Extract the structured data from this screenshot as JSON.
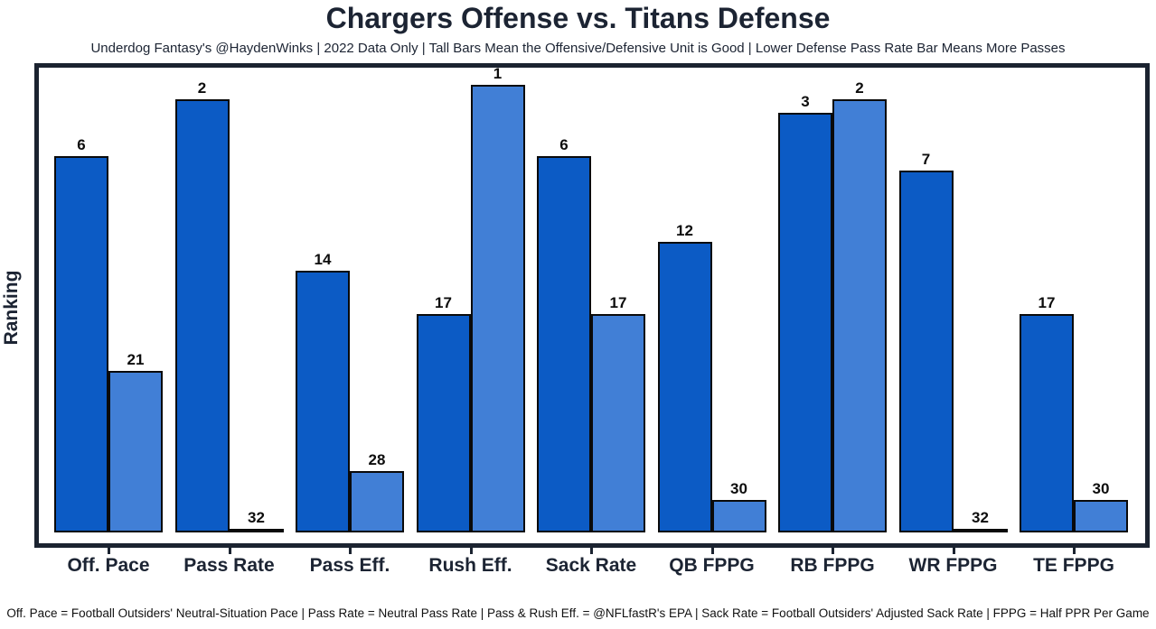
{
  "title": "Chargers Offense vs. Titans Defense",
  "subtitle": "Underdog Fantasy's @HaydenWinks | 2022 Data Only | Tall Bars Mean the Offensive/Defensive Unit is Good | Lower Defense Pass Rate Bar Means More Passes",
  "footer": "Off. Pace = Football Outsiders' Neutral-Situation Pace | Pass Rate = Neutral Pass Rate | Pass & Rush Eff. = @NFLfastR's EPA | Sack Rate = Football Outsiders' Adjusted Sack Rate | FPPG = Half PPR Per Game",
  "chart_data": {
    "type": "bar",
    "title": "Chargers Offense vs. Titans Defense",
    "ylabel": "Ranking",
    "xlabel": "",
    "categories": [
      "Off. Pace",
      "Pass Rate",
      "Pass Eff.",
      "Rush Eff.",
      "Sack Rate",
      "QB FPPG",
      "RB FPPG",
      "WR FPPG",
      "TE FPPG"
    ],
    "series": [
      {
        "name": "Chargers Offense",
        "color": "#0c5bc5",
        "values": [
          6,
          2,
          14,
          17,
          6,
          12,
          3,
          7,
          17
        ]
      },
      {
        "name": "Titans Defense",
        "color": "#417fd6",
        "values": [
          21,
          32,
          28,
          1,
          17,
          30,
          2,
          32,
          30
        ]
      }
    ],
    "value_semantics": "NFL rank 1-32 shown as data label; bar height = 32 - rank (rank 1 tallest, rank 32 flat)",
    "ylim": [
      -0.8,
      32.4
    ],
    "grid": false,
    "legend_position": "none",
    "bar_edge_color": "#0a0a0a",
    "axis_border_color": "#1b2330"
  },
  "colors": {
    "background": "#ffffff",
    "text": "#1c2433",
    "offense_bar": "#0c5bc5",
    "defense_bar": "#417fd6",
    "bar_edge": "#0a0a0a",
    "plot_border": "#1b2330"
  }
}
